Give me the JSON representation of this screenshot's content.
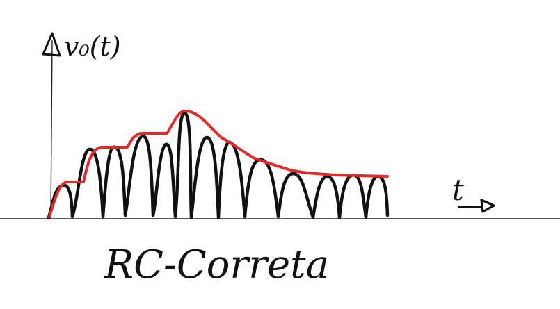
{
  "labels": {
    "y_axis": "v₀(t)",
    "x_axis": "t",
    "caption": "RC-Correta"
  },
  "colors": {
    "ink": "#111111",
    "envelope": "#e02b2b",
    "axis": "#222222"
  },
  "icons": {
    "y_axis_arrow": "triangle-up",
    "x_axis_arrow": "triangle-right"
  }
}
